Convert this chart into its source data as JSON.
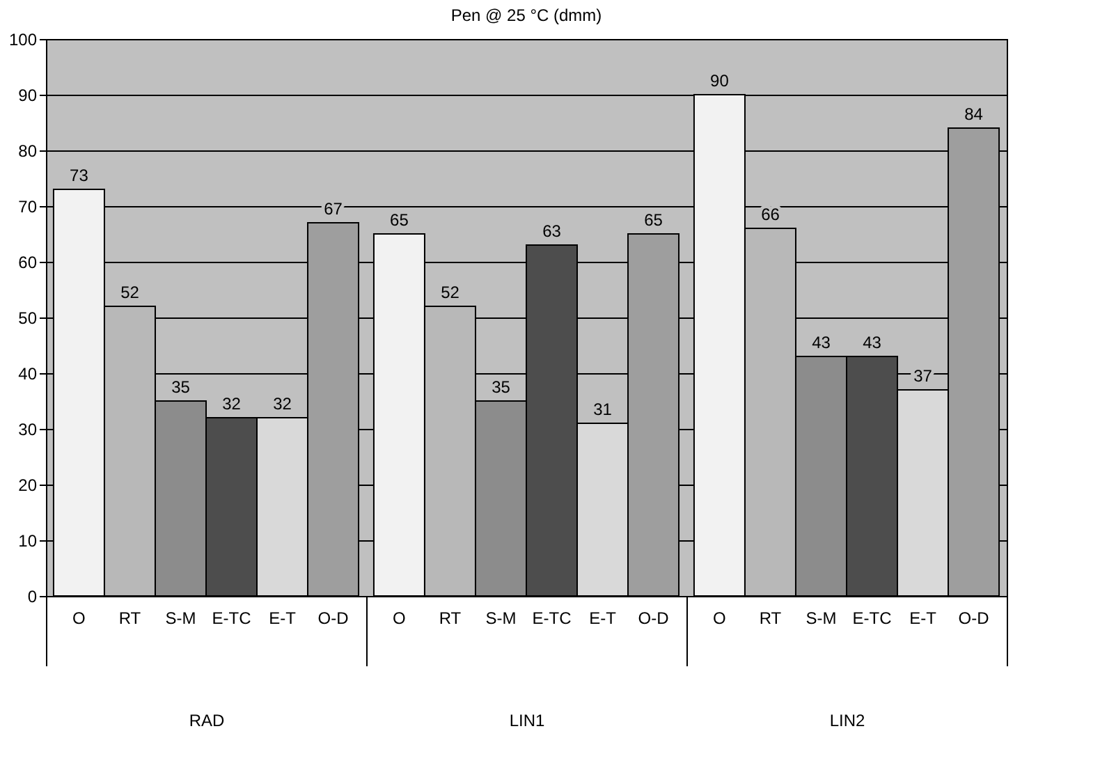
{
  "chart_data": {
    "type": "bar",
    "title": "Pen @ 25 °C (dmm)",
    "categories": [
      "RAD",
      "LIN1",
      "LIN2"
    ],
    "series": [
      {
        "name": "O",
        "color": "#f2f2f2",
        "values": [
          73,
          65,
          90
        ]
      },
      {
        "name": "RT",
        "color": "#b8b8b8",
        "values": [
          52,
          52,
          66
        ]
      },
      {
        "name": "S-M",
        "color": "#8c8c8c",
        "values": [
          35,
          35,
          43
        ]
      },
      {
        "name": "E-TC",
        "color": "#4d4d4d",
        "values": [
          32,
          63,
          43
        ]
      },
      {
        "name": "E-T",
        "color": "#d9d9d9",
        "values": [
          32,
          31,
          37
        ]
      },
      {
        "name": "O-D",
        "color": "#9e9e9e",
        "values": [
          67,
          65,
          84
        ]
      }
    ],
    "ylim": [
      0,
      100
    ],
    "yticks": [
      0,
      10,
      20,
      30,
      40,
      50,
      60,
      70,
      80,
      90,
      100
    ],
    "grid": "y",
    "legend": false,
    "data_labels": true
  }
}
